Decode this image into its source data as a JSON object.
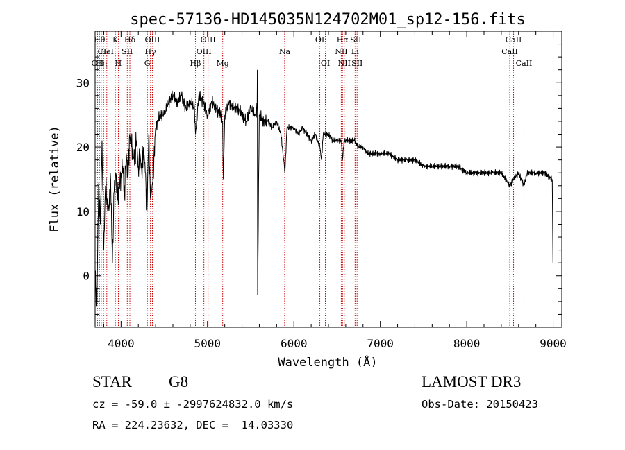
{
  "chart_data": {
    "type": "line",
    "title": "spec-57136-HD145035N124702M01_sp12-156.fits",
    "xlabel": "Wavelength (Å)",
    "ylabel": "Flux (relative)",
    "xlim": [
      3700,
      9100
    ],
    "ylim": [
      -8,
      38
    ],
    "xticks": [
      4000,
      5000,
      6000,
      7000,
      8000,
      9000
    ],
    "xtick_labels": [
      "4000",
      "5000",
      "6000",
      "7000",
      "8000",
      "9000"
    ],
    "yticks": [
      0,
      10,
      20,
      30
    ],
    "ytick_labels": [
      "0",
      "10",
      "20",
      "30"
    ],
    "grid": false,
    "line_color": "#000000",
    "marker_color": "#cc0000",
    "series": [
      {
        "values_x": [
          3700,
          3720,
          3740,
          3760,
          3780,
          3800,
          3820,
          3840,
          3860,
          3880,
          3900,
          3920,
          3940,
          3960,
          3980,
          4000,
          4020,
          4040,
          4060,
          4080,
          4100,
          4120,
          4140,
          4160,
          4180,
          4200,
          4220,
          4240,
          4260,
          4280,
          4300,
          4320,
          4340,
          4360,
          4380,
          4400,
          4450,
          4500,
          4550,
          4600,
          4650,
          4700,
          4750,
          4800,
          4850,
          4861,
          4900,
          4950,
          5000,
          5050,
          5100,
          5150,
          5175,
          5184,
          5200,
          5250,
          5300,
          5350,
          5400,
          5450,
          5500,
          5550,
          5575,
          5577,
          5580,
          5600,
          5650,
          5700,
          5750,
          5800,
          5850,
          5890,
          5896,
          5920,
          5950,
          6000,
          6050,
          6100,
          6150,
          6200,
          6250,
          6300,
          6320,
          6340,
          6400,
          6450,
          6500,
          6550,
          6563,
          6580,
          6600,
          6650,
          6700,
          6750,
          6800,
          6850,
          6900,
          6950,
          7000,
          7100,
          7200,
          7300,
          7400,
          7500,
          7600,
          7700,
          7800,
          7900,
          8000,
          8100,
          8200,
          8300,
          8400,
          8498,
          8542,
          8600,
          8662,
          8700,
          8800,
          8900,
          8990,
          8998
        ],
        "values_y": [
          0,
          -5,
          14,
          8,
          21,
          4,
          14,
          12,
          10,
          15,
          2,
          13,
          16,
          12,
          14,
          16,
          17,
          13,
          19,
          15,
          22,
          20,
          18,
          19,
          21,
          17,
          19,
          16,
          20,
          16,
          10,
          22,
          12,
          14,
          18,
          23,
          25,
          25,
          27,
          28,
          27,
          28,
          26,
          27,
          26,
          22,
          28,
          27,
          25,
          27,
          26,
          25,
          24,
          15,
          25,
          27,
          26,
          26,
          25,
          24,
          26,
          25,
          26,
          32,
          -3,
          25,
          24,
          24,
          23,
          24,
          22,
          17,
          16,
          23,
          23,
          23,
          22,
          23,
          22,
          21,
          22,
          20,
          18,
          22,
          22,
          21,
          21,
          21,
          18,
          21,
          21,
          21,
          21,
          20,
          20,
          19,
          19,
          19,
          19,
          19,
          18,
          18,
          18,
          17,
          17,
          17,
          17,
          17,
          16,
          16,
          16,
          16,
          16,
          14,
          15,
          16,
          14,
          16,
          16,
          16,
          15,
          2
        ]
      }
    ],
    "line_markers": [
      {
        "wl": 3727,
        "label": "OII",
        "row": 2
      },
      {
        "wl": 3750,
        "label": "Hθ",
        "row": 0
      },
      {
        "wl": 3771,
        "label": "Hη",
        "row": 2
      },
      {
        "wl": 3798,
        "label": "CII",
        "row": 1
      },
      {
        "wl": 3835,
        "label": "HeI",
        "row": 1
      },
      {
        "wl": 3934,
        "label": "K",
        "row": 0
      },
      {
        "wl": 3969,
        "label": "H",
        "row": 2
      },
      {
        "wl": 4072,
        "label": "SII",
        "row": 1
      },
      {
        "wl": 4102,
        "label": "Hδ",
        "row": 0
      },
      {
        "wl": 4304,
        "label": "G",
        "row": 2
      },
      {
        "wl": 4340,
        "label": "Hγ",
        "row": 1
      },
      {
        "wl": 4363,
        "label": "OIII",
        "row": 0
      },
      {
        "wl": 4861,
        "label": "Hβ",
        "row": 2
      },
      {
        "wl": 4959,
        "label": "OIII",
        "row": 1
      },
      {
        "wl": 5007,
        "label": "OIII",
        "row": 0
      },
      {
        "wl": 5176,
        "label": "Mg",
        "row": 2
      },
      {
        "wl": 5893,
        "label": "Na",
        "row": 1
      },
      {
        "wl": 6300,
        "label": "OI",
        "row": 0
      },
      {
        "wl": 6364,
        "label": "OI",
        "row": 2
      },
      {
        "wl": 6548,
        "label": "NII",
        "row": 1
      },
      {
        "wl": 6563,
        "label": "Hα",
        "row": 0
      },
      {
        "wl": 6583,
        "label": "NII",
        "row": 2
      },
      {
        "wl": 6708,
        "label": "Li",
        "row": 1
      },
      {
        "wl": 6716,
        "label": "SII",
        "row": 0
      },
      {
        "wl": 6731,
        "label": "SII",
        "row": 2
      },
      {
        "wl": 8498,
        "label": "CaII",
        "row": 1
      },
      {
        "wl": 8542,
        "label": "CaII",
        "row": 0
      },
      {
        "wl": 8662,
        "label": "CaII",
        "row": 2
      }
    ]
  },
  "info": {
    "object_class": "STAR",
    "subclass": "G8",
    "survey": "LAMOST DR3",
    "cz_line": "cz = -59.0 ± -2997624832.0 km/s",
    "obs_date": "Obs-Date: 20150423",
    "radec_line": "RA = 224.23632, DEC =  14.03330"
  }
}
